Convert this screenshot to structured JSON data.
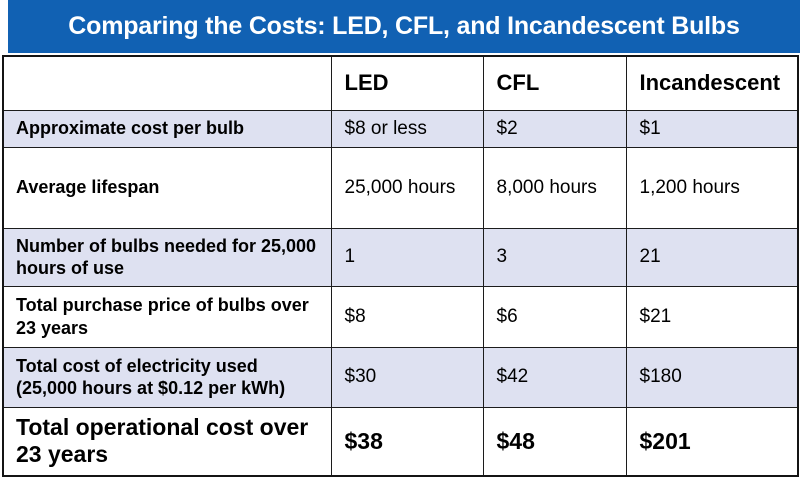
{
  "title": "Comparing the Costs: LED, CFL, and Incandescent Bulbs",
  "colors": {
    "header_blue": "#1161b3",
    "row_shade": "#dee1f1",
    "border": "#1c1c1c",
    "title_text": "#ffffff",
    "body_text": "#000000"
  },
  "chart_data": {
    "type": "table",
    "title": "Comparing the Costs: LED, CFL, and Incandescent Bulbs",
    "columns": [
      "",
      "LED",
      "CFL",
      "Incandescent"
    ],
    "rows": [
      {
        "label": "Approximate cost per bulb",
        "values": [
          "$8 or less",
          "$2",
          "$1"
        ]
      },
      {
        "label": "Average lifespan",
        "values": [
          "25,000 hours",
          "8,000 hours",
          "1,200 hours"
        ]
      },
      {
        "label": "Number of bulbs needed for 25,000 hours of use",
        "values": [
          "1",
          "3",
          "21"
        ]
      },
      {
        "label": "Total purchase price of bulbs over 23 years",
        "values": [
          "$8",
          "$6",
          "$21"
        ]
      },
      {
        "label": "Total cost of electricity used (25,000 hours at $0.12 per kWh)",
        "values": [
          "$30",
          "$42",
          "$180"
        ]
      },
      {
        "label": "Total operational cost over 23 years",
        "values": [
          "$38",
          "$48",
          "$201"
        ]
      }
    ],
    "layout_hints": {
      "shaded_rows": [
        1,
        3,
        5
      ],
      "emphasized_row": 6,
      "grid": true,
      "legend": "none"
    }
  }
}
